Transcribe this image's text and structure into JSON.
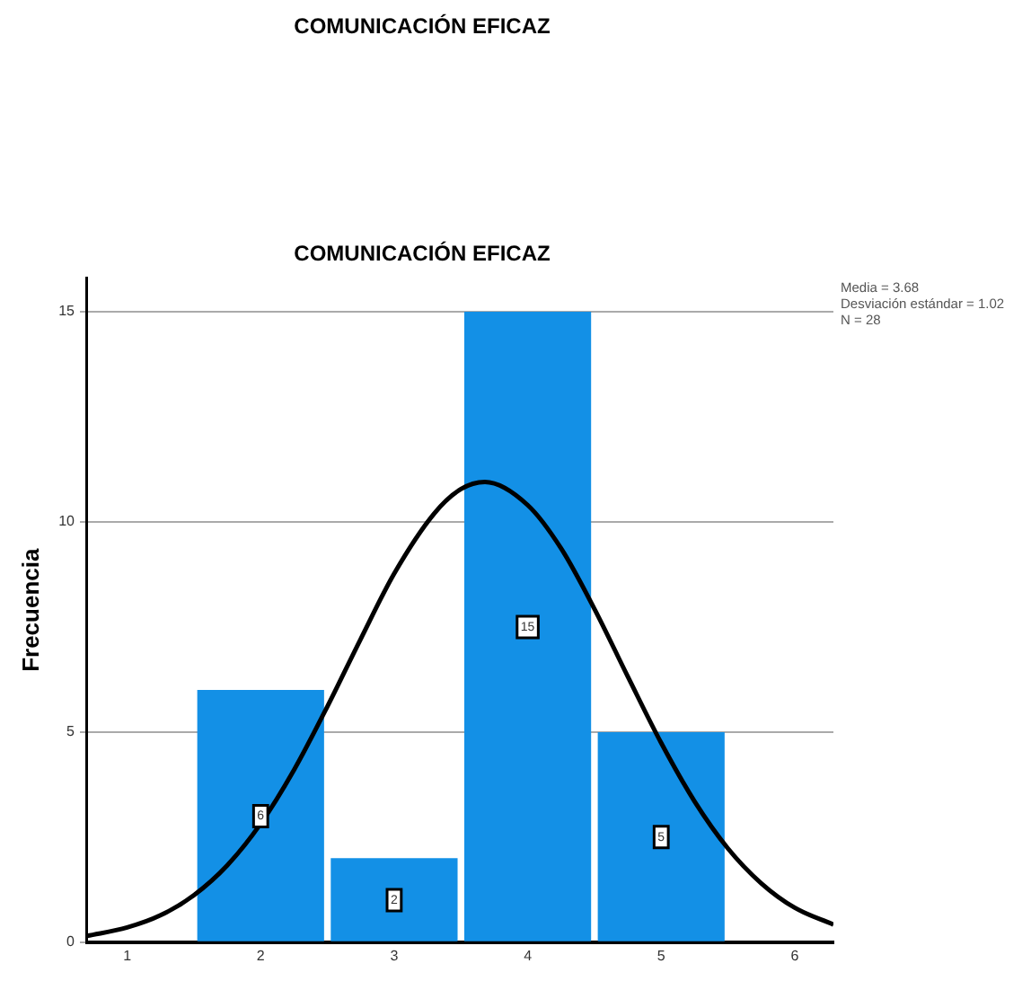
{
  "chart_data": {
    "type": "histogram",
    "title": "COMUNICACIÓN EFICAZ",
    "subtitle": "COMUNICACIÓN EFICAZ",
    "ylabel": "Frecuencia",
    "bins": [
      1.5,
      2.5,
      3.5,
      4.5,
      5.5
    ],
    "values": [
      6,
      2,
      15,
      5
    ],
    "color": "#1390e6",
    "value_labels": [
      "6",
      "2",
      "15",
      "5"
    ],
    "series": [
      {
        "type": "line",
        "color": "#000000",
        "x": [
          0.7,
          1.0,
          1.25,
          1.5,
          1.75,
          2.0,
          2.25,
          2.5,
          2.75,
          3.0,
          3.3,
          3.5,
          3.68,
          4.0,
          4.25,
          4.5,
          4.75,
          5.0,
          5.25,
          5.5,
          5.75,
          6.0,
          6.29
        ],
        "values": [
          0.15,
          0.35,
          0.64,
          1.12,
          1.83,
          2.82,
          4.1,
          5.61,
          7.22,
          8.77,
          10.2,
          10.78,
          10.95,
          10.4,
          9.37,
          7.93,
          6.32,
          4.74,
          3.35,
          2.23,
          1.4,
          0.82,
          0.42
        ]
      }
    ],
    "xlim": [
      0.7,
      6.29
    ],
    "xticks": [
      1,
      2,
      3,
      4,
      5,
      6
    ],
    "ylim": [
      0,
      15.8
    ],
    "yticks": [
      0,
      5,
      10,
      15
    ],
    "grid": "y",
    "annotations": [
      "Media = 3.68",
      "Desviación estándar = 1.02",
      "N = 28"
    ]
  }
}
